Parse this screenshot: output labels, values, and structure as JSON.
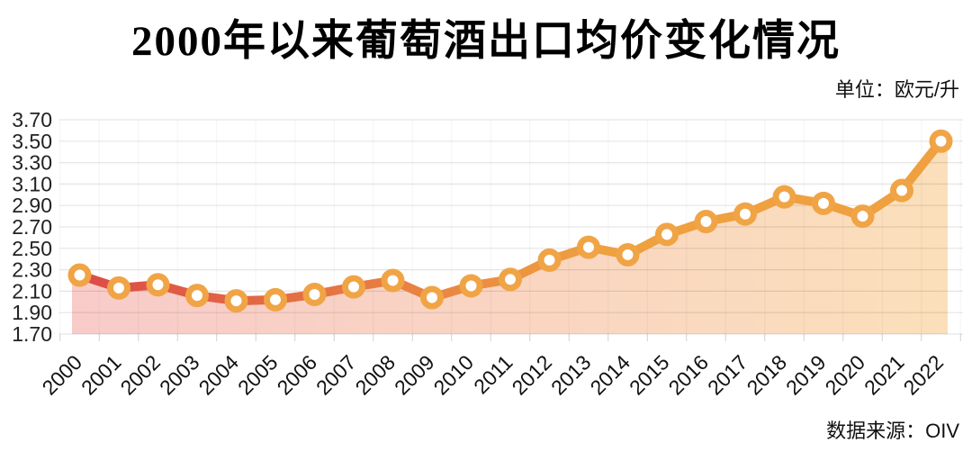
{
  "page": {
    "title": "2000年以来葡萄酒出口均价变化情况",
    "unit_label": "单位：欧元/升",
    "source_label": "数据来源：OIV"
  },
  "chart_data": {
    "type": "line",
    "subtype": "line-with-area-fill-and-markers",
    "title": "2000年以来葡萄酒出口均价变化情况",
    "unit_label": "单位：欧元/升",
    "source_label": "数据来源：OIV",
    "xlabel": "",
    "ylabel": "",
    "categories": [
      "2000",
      "2001",
      "2002",
      "2003",
      "2004",
      "2005",
      "2006",
      "2007",
      "2008",
      "2009",
      "2010",
      "2011",
      "2012",
      "2013",
      "2014",
      "2015",
      "2016",
      "2017",
      "2018",
      "2019",
      "2020",
      "2021",
      "2022"
    ],
    "values": [
      2.25,
      2.13,
      2.16,
      2.06,
      2.01,
      2.02,
      2.07,
      2.14,
      2.2,
      2.04,
      2.15,
      2.21,
      2.39,
      2.51,
      2.44,
      2.63,
      2.75,
      2.82,
      2.98,
      2.92,
      2.8,
      3.04,
      3.5
    ],
    "ylim": [
      1.7,
      3.7
    ],
    "ytick_step": 0.2,
    "ytick_labels": [
      "3.70",
      "3.50",
      "3.30",
      "3.10",
      "2.90",
      "2.70",
      "2.50",
      "2.30",
      "2.10",
      "1.90",
      "1.70"
    ],
    "grid": true,
    "legend": false,
    "x_labels_rotation_deg": -45,
    "colors": {
      "line_start": "#dc4b47",
      "line_end": "#efa03f",
      "marker_ring": "#f0a445",
      "marker_fill": "#ffffff",
      "area_start": "#f8cbc9",
      "area_end": "#fbdfba",
      "gridline": "#e3e3e3",
      "axis_text": "#1a1a1a",
      "title_text": "#000000"
    }
  }
}
